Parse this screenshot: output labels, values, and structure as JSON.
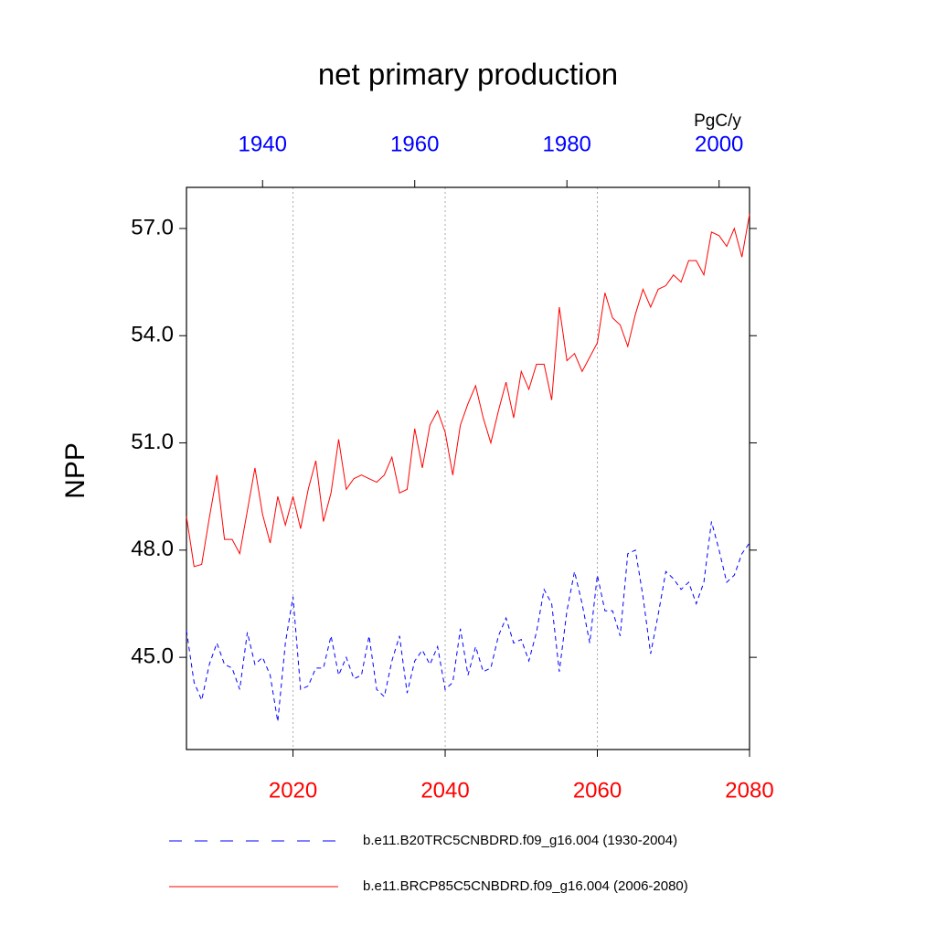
{
  "chart_data": {
    "type": "line",
    "title": "net primary production",
    "ylabel": "NPP",
    "units": "PgC/y",
    "xlim": [
      2006,
      2080
    ],
    "xticks": [
      2020,
      2040,
      2060,
      2080
    ],
    "xtick_color": "#ff0000",
    "x2lim": [
      1930,
      2004
    ],
    "x2ticks": [
      1940,
      1960,
      1980,
      2000
    ],
    "x2tick_color": "#0000ff",
    "ylim": [
      42.42,
      58.15
    ],
    "yticks": [
      {
        "value": 45,
        "label": "45.0"
      },
      {
        "value": 48,
        "label": "48.0"
      },
      {
        "value": 51,
        "label": "51.0"
      },
      {
        "value": 54,
        "label": "54.0"
      },
      {
        "value": 57,
        "label": "57.0"
      }
    ],
    "grid": true,
    "legend": "bottom",
    "series": [
      {
        "name": "b.e11.B20TRC5CNBDRD.f09_g16.004 (1930-2004)",
        "color": "#0000ff",
        "dashed": true,
        "axis": "x2",
        "x": [
          1930,
          1931,
          1932,
          1933,
          1934,
          1935,
          1936,
          1937,
          1938,
          1939,
          1940,
          1941,
          1942,
          1943,
          1944,
          1945,
          1946,
          1947,
          1948,
          1949,
          1950,
          1951,
          1952,
          1953,
          1954,
          1955,
          1956,
          1957,
          1958,
          1959,
          1960,
          1961,
          1962,
          1963,
          1964,
          1965,
          1966,
          1967,
          1968,
          1969,
          1970,
          1971,
          1972,
          1973,
          1974,
          1975,
          1976,
          1977,
          1978,
          1979,
          1980,
          1981,
          1982,
          1983,
          1984,
          1985,
          1986,
          1987,
          1988,
          1989,
          1990,
          1991,
          1992,
          1993,
          1994,
          1995,
          1996,
          1997,
          1998,
          1999,
          2000,
          2001,
          2002,
          2003,
          2004
        ],
        "values": [
          45.75,
          44.3,
          43.8,
          44.8,
          45.4,
          44.8,
          44.7,
          44.1,
          45.7,
          44.8,
          45.0,
          44.5,
          43.2,
          45.4,
          46.7,
          44.1,
          44.2,
          44.7,
          44.7,
          45.6,
          44.5,
          45.0,
          44.4,
          44.5,
          45.6,
          44.1,
          43.9,
          44.9,
          45.6,
          44.0,
          44.9,
          45.2,
          44.8,
          45.3,
          44.1,
          44.3,
          45.8,
          44.5,
          45.3,
          44.6,
          44.7,
          45.6,
          46.1,
          45.4,
          45.5,
          44.9,
          45.7,
          46.9,
          46.5,
          44.6,
          46.3,
          47.4,
          46.5,
          45.4,
          47.3,
          46.3,
          46.3,
          45.6,
          47.9,
          48.0,
          46.7,
          45.1,
          46.2,
          47.4,
          47.2,
          46.9,
          47.1,
          46.5,
          47.1,
          48.8,
          48.0,
          47.1,
          47.3,
          47.9,
          48.2
        ]
      },
      {
        "name": "b.e11.BRCP85C5CNBDRD.f09_g16.004 (2006-2080)",
        "color": "#ff0000",
        "dashed": false,
        "axis": "x",
        "x": [
          2006,
          2007,
          2008,
          2009,
          2010,
          2011,
          2012,
          2013,
          2014,
          2015,
          2016,
          2017,
          2018,
          2019,
          2020,
          2021,
          2022,
          2023,
          2024,
          2025,
          2026,
          2027,
          2028,
          2029,
          2030,
          2031,
          2032,
          2033,
          2034,
          2035,
          2036,
          2037,
          2038,
          2039,
          2040,
          2041,
          2042,
          2043,
          2044,
          2045,
          2046,
          2047,
          2048,
          2049,
          2050,
          2051,
          2052,
          2053,
          2054,
          2055,
          2056,
          2057,
          2058,
          2059,
          2060,
          2061,
          2062,
          2063,
          2064,
          2065,
          2066,
          2067,
          2068,
          2069,
          2070,
          2071,
          2072,
          2073,
          2074,
          2075,
          2076,
          2077,
          2078,
          2079,
          2080
        ],
        "values": [
          48.94,
          47.54,
          47.6,
          48.9,
          50.1,
          48.3,
          48.3,
          47.9,
          49.1,
          50.3,
          49.0,
          48.2,
          49.5,
          48.7,
          49.5,
          48.6,
          49.7,
          50.5,
          48.8,
          49.6,
          51.1,
          49.7,
          50.0,
          50.1,
          50.0,
          49.9,
          50.1,
          50.6,
          49.6,
          49.7,
          51.4,
          50.3,
          51.5,
          51.9,
          51.3,
          50.1,
          51.5,
          52.1,
          52.6,
          51.7,
          51.0,
          51.9,
          52.7,
          51.7,
          53.0,
          52.5,
          53.2,
          53.2,
          52.2,
          54.8,
          53.3,
          53.5,
          53.0,
          53.4,
          53.8,
          55.2,
          54.5,
          54.3,
          53.7,
          54.6,
          55.3,
          54.8,
          55.3,
          55.4,
          55.7,
          55.5,
          56.1,
          56.1,
          55.7,
          56.9,
          56.8,
          56.5,
          57.0,
          56.2,
          57.4
        ]
      }
    ]
  }
}
